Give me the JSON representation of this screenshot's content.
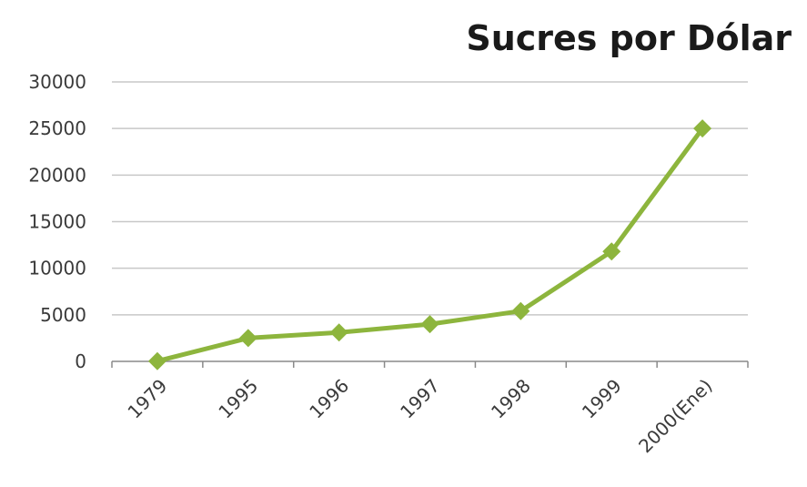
{
  "chart_data": {
    "type": "line",
    "title": "Sucres por Dólar",
    "xlabel": "",
    "ylabel": "",
    "categories": [
      "1979",
      "1995",
      "1996",
      "1997",
      "1998",
      "1999",
      "2000(Ene)"
    ],
    "series": [
      {
        "values": [
          25,
          2500,
          3100,
          4000,
          5400,
          11800,
          25000
        ],
        "color": "#8db53d"
      }
    ],
    "ylim": [
      0,
      30000
    ],
    "yticks": [
      0,
      5000,
      10000,
      15000,
      20000,
      25000,
      30000
    ],
    "yticks_labels": [
      "0",
      "5000",
      "10000",
      "15000",
      "20000",
      "25000",
      "30000"
    ],
    "grid": true,
    "legend": "none",
    "marker": "diamond"
  }
}
